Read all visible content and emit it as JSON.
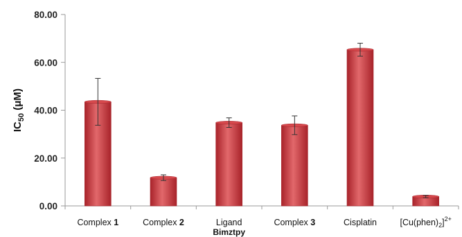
{
  "chart_data": {
    "type": "bar",
    "categories": [
      {
        "label": "Complex ",
        "bold_suffix": "1"
      },
      {
        "label": "Complex ",
        "bold_suffix": "2"
      },
      {
        "label": "Ligand",
        "bold_suffix": ""
      },
      {
        "label": "Complex ",
        "bold_suffix": "3"
      },
      {
        "label": "Cisplatin",
        "bold_suffix": ""
      },
      {
        "label": "[Cu(phen)",
        "sub": "2",
        "after_sub": "]",
        "sup": "2+"
      }
    ],
    "values": [
      43.5,
      11.8,
      34.8,
      33.7,
      65.3,
      3.9
    ],
    "error": [
      9.8,
      1.2,
      2.0,
      3.9,
      2.7,
      0.5
    ],
    "ylabel": {
      "main": "IC",
      "sub": "50",
      "rest": " (μM)"
    },
    "xlabel_under_ligand": "Bimztpy",
    "ylim": [
      0,
      80
    ],
    "yticks": [
      "0.00",
      "20.00",
      "40.00",
      "60.00",
      "80.00"
    ],
    "grid": false,
    "colors": {
      "bar_dark": "#a8232a",
      "bar_mid": "#d6494d",
      "bar_light": "#e2686b",
      "axis": "#9a9a9a",
      "error": "#333333"
    }
  }
}
